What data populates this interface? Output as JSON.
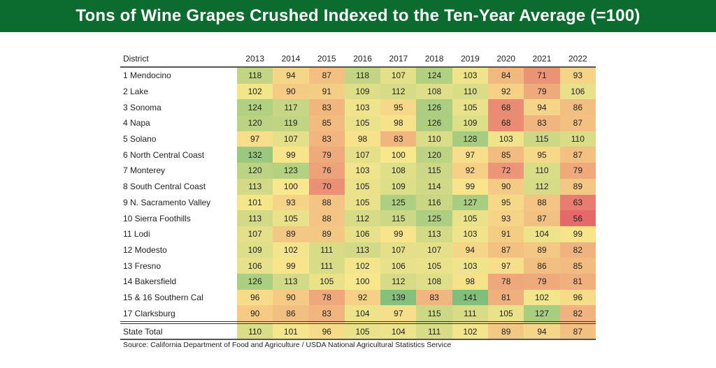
{
  "title": "Tons of Wine Grapes Crushed Indexed to the Ten-Year Average (=100)",
  "source": "Source: California Department of Food and Agriculture / USDA National Agricultural Statistics Service",
  "chart_data": {
    "type": "heatmap",
    "title": "Tons of Wine Grapes Crushed Indexed to the Ten-Year Average (=100)",
    "row_header": "District",
    "columns": [
      "2013",
      "2014",
      "2015",
      "2016",
      "2017",
      "2018",
      "2019",
      "2020",
      "2021",
      "2022"
    ],
    "rows": [
      {
        "name": "1 Mendocino",
        "values": [
          118,
          94,
          87,
          118,
          107,
          124,
          103,
          84,
          71,
          93
        ]
      },
      {
        "name": "2 Lake",
        "values": [
          102,
          90,
          91,
          109,
          112,
          108,
          110,
          92,
          79,
          106
        ]
      },
      {
        "name": "3 Sonoma",
        "values": [
          124,
          117,
          83,
          103,
          95,
          126,
          105,
          68,
          94,
          86
        ]
      },
      {
        "name": "4 Napa",
        "values": [
          120,
          119,
          85,
          105,
          98,
          126,
          109,
          68,
          83,
          87
        ]
      },
      {
        "name": "5 Solano",
        "values": [
          97,
          107,
          83,
          98,
          83,
          110,
          128,
          103,
          115,
          110
        ]
      },
      {
        "name": "6 North Central Coast",
        "values": [
          132,
          99,
          79,
          107,
          100,
          120,
          97,
          85,
          95,
          87
        ]
      },
      {
        "name": "7 Monterey",
        "values": [
          120,
          123,
          76,
          103,
          108,
          115,
          92,
          72,
          110,
          79
        ]
      },
      {
        "name": "8 South Central Coast",
        "values": [
          113,
          100,
          70,
          105,
          109,
          114,
          99,
          90,
          112,
          89
        ]
      },
      {
        "name": "9 N. Sacramento Valley",
        "values": [
          101,
          93,
          88,
          105,
          125,
          116,
          127,
          95,
          88,
          63
        ]
      },
      {
        "name": "10 Sierra Foothills",
        "values": [
          113,
          105,
          88,
          112,
          115,
          125,
          105,
          93,
          87,
          56
        ]
      },
      {
        "name": "11 Lodi",
        "values": [
          107,
          89,
          89,
          106,
          99,
          113,
          103,
          91,
          104,
          99
        ]
      },
      {
        "name": "12 Modesto",
        "values": [
          109,
          102,
          111,
          113,
          107,
          107,
          94,
          87,
          89,
          82
        ]
      },
      {
        "name": "13 Fresno",
        "values": [
          106,
          99,
          111,
          102,
          106,
          105,
          103,
          97,
          86,
          85
        ]
      },
      {
        "name": "14 Bakersfield",
        "values": [
          126,
          113,
          105,
          100,
          112,
          108,
          98,
          78,
          79,
          81
        ]
      },
      {
        "name": "15 & 16 Southern Cal",
        "values": [
          96,
          90,
          78,
          92,
          139,
          83,
          141,
          81,
          102,
          96
        ]
      },
      {
        "name": "17 Clarksburg",
        "values": [
          90,
          86,
          83,
          104,
          97,
          115,
          111,
          105,
          127,
          82
        ]
      }
    ],
    "total": {
      "name": "State Total",
      "values": [
        110,
        101,
        96,
        105,
        104,
        111,
        102,
        89,
        94,
        87
      ]
    },
    "color_scale": {
      "low": {
        "value": 56,
        "color": "#e5686b"
      },
      "mid": {
        "value": 100,
        "color": "#f8e78c"
      },
      "high": {
        "value": 141,
        "color": "#7fbf7b"
      }
    }
  }
}
